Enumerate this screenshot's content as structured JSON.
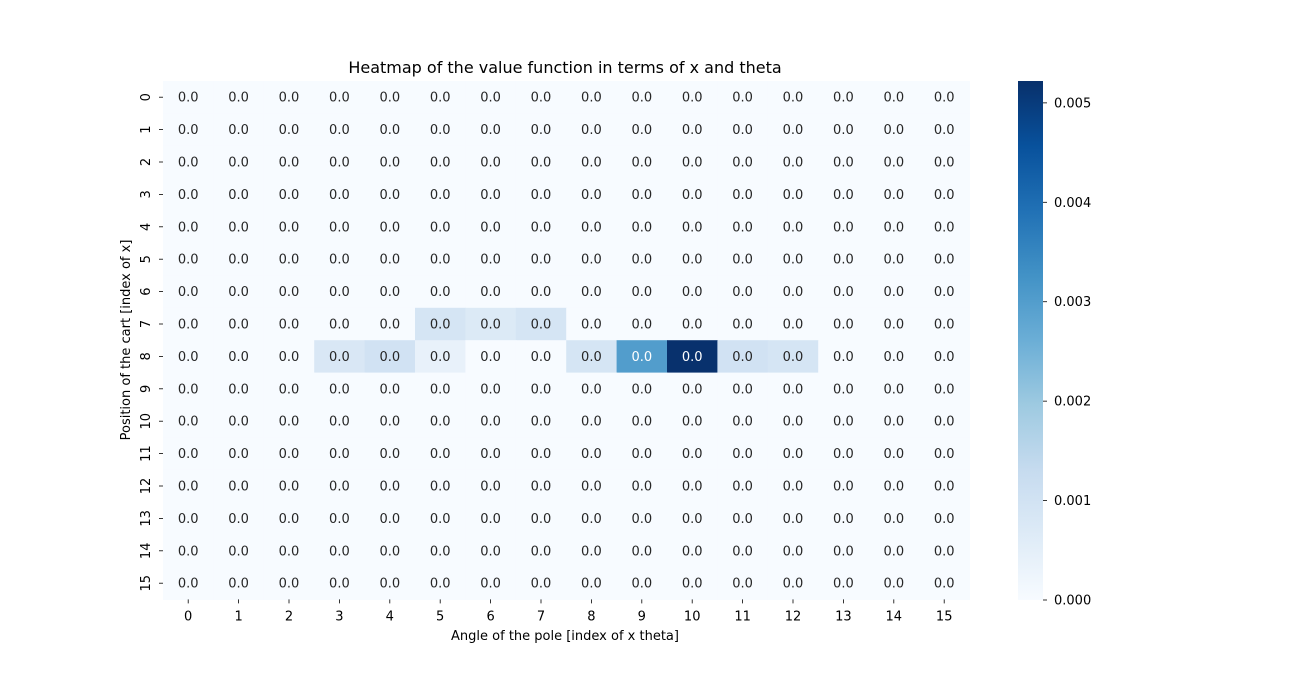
{
  "chart_data": {
    "type": "heatmap",
    "title": "Heatmap of the value function in terms of x and theta",
    "xlabel": "Angle of the pole [index of x theta]",
    "ylabel": "Position of the cart [index of x]",
    "x_ticks": [
      "0",
      "1",
      "2",
      "3",
      "4",
      "5",
      "6",
      "7",
      "8",
      "9",
      "10",
      "11",
      "12",
      "13",
      "14",
      "15"
    ],
    "y_ticks": [
      "0",
      "1",
      "2",
      "3",
      "4",
      "5",
      "6",
      "7",
      "8",
      "9",
      "10",
      "11",
      "12",
      "13",
      "14",
      "15"
    ],
    "cell_label": "0.0",
    "colormap": "Blues",
    "vmin": 0.0,
    "vmax": 0.00522,
    "colorbar_ticks": [
      "0.000",
      "0.001",
      "0.002",
      "0.003",
      "0.004",
      "0.005"
    ],
    "nonzero_cells": [
      {
        "row": 7,
        "col": 5,
        "value": 0.0009
      },
      {
        "row": 7,
        "col": 6,
        "value": 0.0007
      },
      {
        "row": 7,
        "col": 7,
        "value": 0.0009
      },
      {
        "row": 8,
        "col": 3,
        "value": 0.0008
      },
      {
        "row": 8,
        "col": 4,
        "value": 0.001
      },
      {
        "row": 8,
        "col": 5,
        "value": 0.0004
      },
      {
        "row": 8,
        "col": 8,
        "value": 0.0009
      },
      {
        "row": 8,
        "col": 9,
        "value": 0.003
      },
      {
        "row": 8,
        "col": 10,
        "value": 0.0052
      },
      {
        "row": 8,
        "col": 11,
        "value": 0.001
      },
      {
        "row": 8,
        "col": 12,
        "value": 0.0009
      }
    ]
  }
}
